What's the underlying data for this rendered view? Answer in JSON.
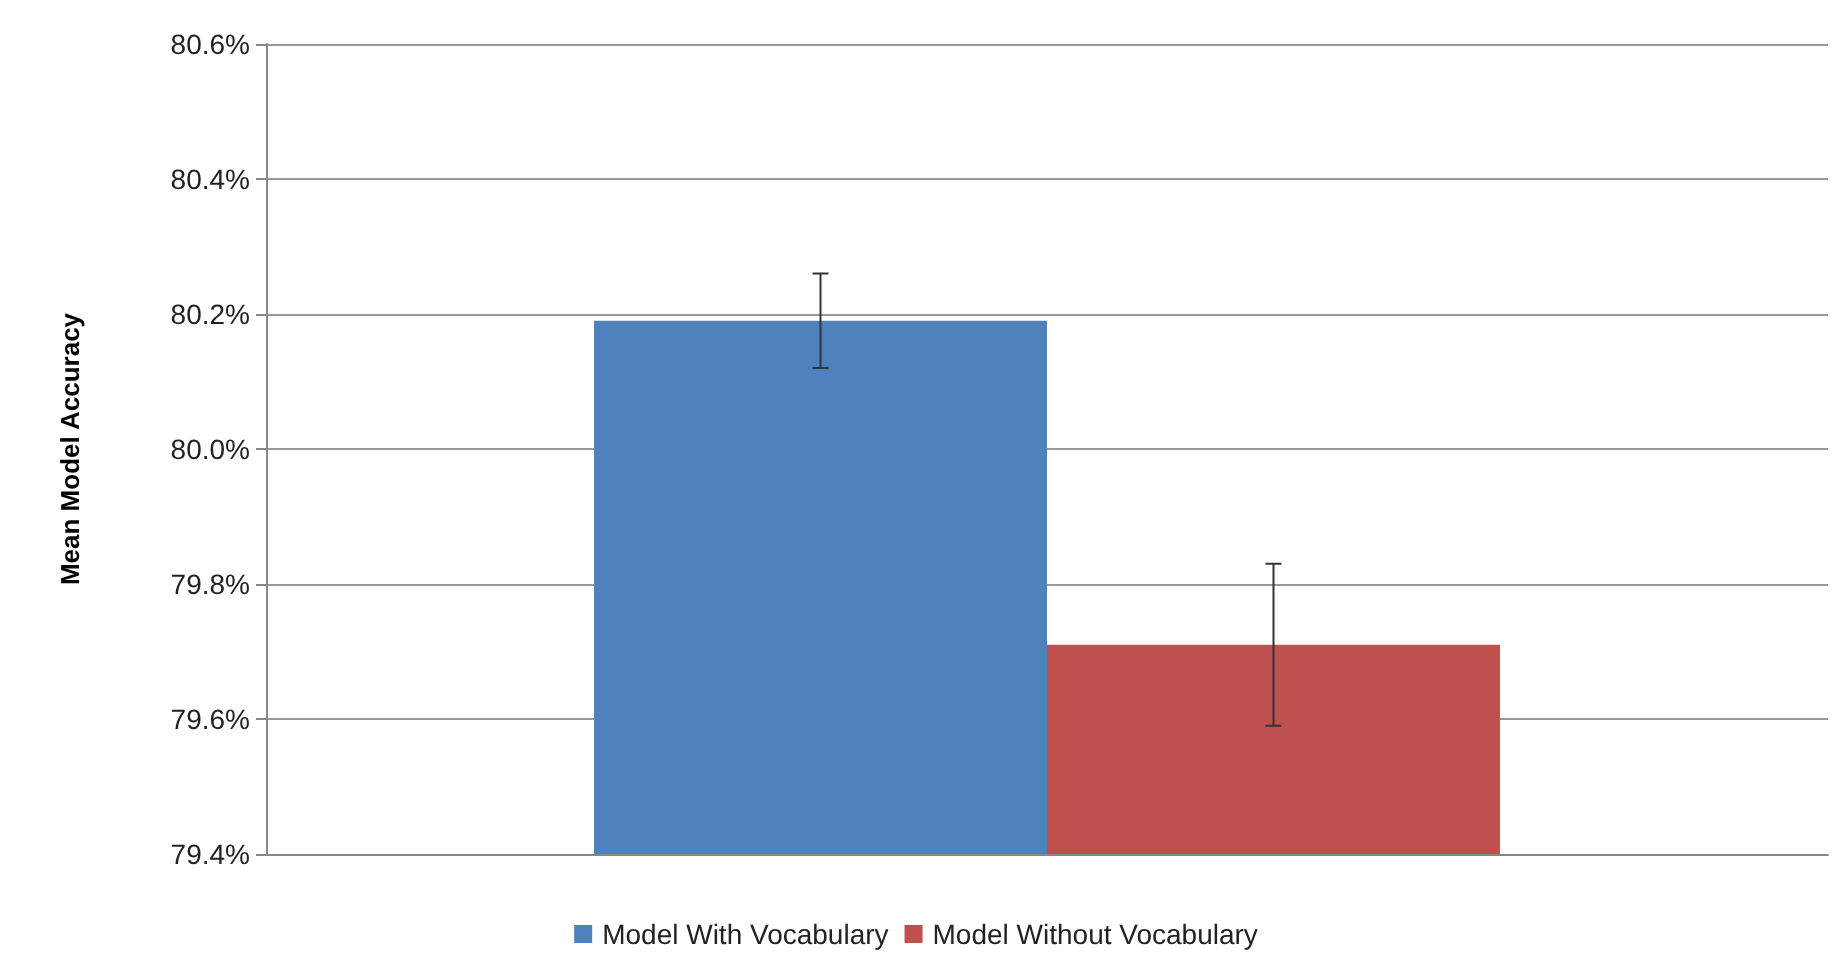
{
  "chart_data": {
    "type": "bar",
    "ylabel": "Mean Model Accuracy",
    "categories": [
      null
    ],
    "series": [
      {
        "name": "Model With Vocabulary",
        "color": "#4f81bd",
        "values": [
          80.19
        ],
        "errors": [
          0.07
        ]
      },
      {
        "name": "Model Without Vocabulary",
        "color": "#c0504d",
        "values": [
          79.71
        ],
        "errors": [
          0.12
        ]
      }
    ],
    "ylim": [
      79.4,
      80.6
    ],
    "yticks": [
      {
        "value": 79.4,
        "label": "79.4%"
      },
      {
        "value": 79.6,
        "label": "79.6%"
      },
      {
        "value": 79.8,
        "label": "79.8%"
      },
      {
        "value": 80.0,
        "label": "80.0%"
      },
      {
        "value": 80.2,
        "label": "80.2%"
      },
      {
        "value": 80.4,
        "label": "80.4%"
      },
      {
        "value": 80.6,
        "label": "80.6%"
      }
    ],
    "grid": "y",
    "legend": "bottom"
  }
}
